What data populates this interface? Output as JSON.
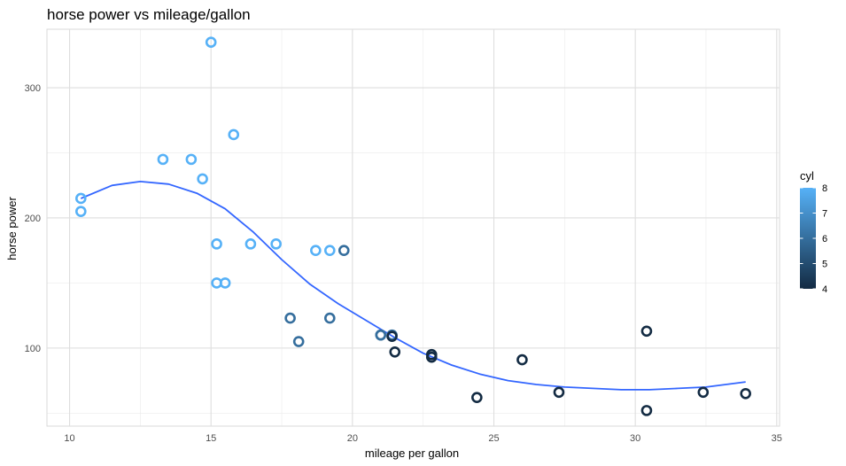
{
  "chart_data": {
    "type": "scatter",
    "title": "horse power vs mileage/gallon",
    "xlabel": "mileage per gallon",
    "ylabel": "horse power",
    "xlim": [
      9.2,
      35.1
    ],
    "ylim": [
      40,
      345
    ],
    "x_ticks": [
      10,
      15,
      20,
      25,
      30,
      35
    ],
    "x_tick_labels": [
      "10",
      "15",
      "20",
      "25",
      "30",
      "35"
    ],
    "y_ticks": [
      100,
      200,
      300
    ],
    "y_tick_labels": [
      "100",
      "200",
      "300"
    ],
    "y_minor_ticks": [
      50,
      150,
      250
    ],
    "grid": true,
    "color_variable": "cyl",
    "color_scale": {
      "low_value": 4,
      "high_value": 8,
      "low_color": "#132b43",
      "high_color": "#56b1f7",
      "ticks": [
        4,
        5,
        6,
        7,
        8
      ],
      "tick_labels": [
        "4",
        "5",
        "6",
        "7",
        "8"
      ]
    },
    "legend_position": "right",
    "smooth_color": "#3366ff",
    "points": [
      {
        "x": 21.0,
        "y": 110,
        "cyl": 6
      },
      {
        "x": 21.0,
        "y": 110,
        "cyl": 6
      },
      {
        "x": 22.8,
        "y": 93,
        "cyl": 4
      },
      {
        "x": 21.4,
        "y": 110,
        "cyl": 6
      },
      {
        "x": 18.7,
        "y": 175,
        "cyl": 8
      },
      {
        "x": 18.1,
        "y": 105,
        "cyl": 6
      },
      {
        "x": 14.3,
        "y": 245,
        "cyl": 8
      },
      {
        "x": 24.4,
        "y": 62,
        "cyl": 4
      },
      {
        "x": 22.8,
        "y": 95,
        "cyl": 4
      },
      {
        "x": 19.2,
        "y": 123,
        "cyl": 6
      },
      {
        "x": 17.8,
        "y": 123,
        "cyl": 6
      },
      {
        "x": 16.4,
        "y": 180,
        "cyl": 8
      },
      {
        "x": 17.3,
        "y": 180,
        "cyl": 8
      },
      {
        "x": 15.2,
        "y": 180,
        "cyl": 8
      },
      {
        "x": 10.4,
        "y": 205,
        "cyl": 8
      },
      {
        "x": 10.4,
        "y": 215,
        "cyl": 8
      },
      {
        "x": 14.7,
        "y": 230,
        "cyl": 8
      },
      {
        "x": 32.4,
        "y": 66,
        "cyl": 4
      },
      {
        "x": 30.4,
        "y": 52,
        "cyl": 4
      },
      {
        "x": 33.9,
        "y": 65,
        "cyl": 4
      },
      {
        "x": 21.5,
        "y": 97,
        "cyl": 4
      },
      {
        "x": 15.5,
        "y": 150,
        "cyl": 8
      },
      {
        "x": 15.2,
        "y": 150,
        "cyl": 8
      },
      {
        "x": 13.3,
        "y": 245,
        "cyl": 8
      },
      {
        "x": 19.2,
        "y": 175,
        "cyl": 8
      },
      {
        "x": 27.3,
        "y": 66,
        "cyl": 4
      },
      {
        "x": 26.0,
        "y": 91,
        "cyl": 4
      },
      {
        "x": 30.4,
        "y": 113,
        "cyl": 4
      },
      {
        "x": 15.8,
        "y": 264,
        "cyl": 8
      },
      {
        "x": 19.7,
        "y": 175,
        "cyl": 6
      },
      {
        "x": 15.0,
        "y": 335,
        "cyl": 8
      },
      {
        "x": 21.4,
        "y": 109,
        "cyl": 4
      }
    ],
    "smooth_curve": {
      "x": [
        10.4,
        11.5,
        12.5,
        13.5,
        14.5,
        15.5,
        16.5,
        17.5,
        18.5,
        19.5,
        20.5,
        21.5,
        22.5,
        23.5,
        24.5,
        25.5,
        26.5,
        27.5,
        28.5,
        29.5,
        30.5,
        31.5,
        32.5,
        33.9
      ],
      "y": [
        215,
        225,
        228,
        226,
        219,
        207,
        189,
        168,
        149,
        134,
        121,
        108,
        96,
        87,
        80,
        75,
        72,
        70,
        69,
        68,
        68,
        69,
        70,
        74
      ]
    }
  }
}
